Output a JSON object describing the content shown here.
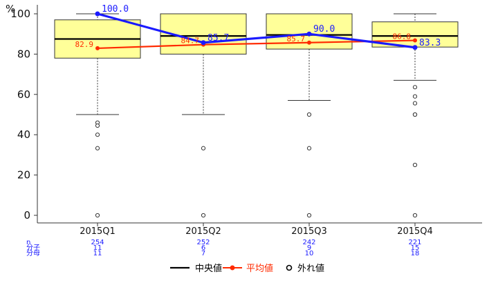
{
  "chart_data": {
    "type": "box",
    "yunit": "%",
    "ylim": [
      0,
      100
    ],
    "yticks": [
      0,
      20,
      40,
      60,
      80,
      100
    ],
    "categories": [
      "2015Q1",
      "2015Q2",
      "2015Q3",
      "2015Q4"
    ],
    "boxes": [
      {
        "category": "2015Q1",
        "whisker_low": 50,
        "q1": 78,
        "median": 87.5,
        "q3": 97,
        "whisker_high": 100,
        "outliers": [
          46,
          44.5,
          40,
          33.3,
          0
        ]
      },
      {
        "category": "2015Q2",
        "whisker_low": 50,
        "q1": 80,
        "median": 89,
        "q3": 100,
        "whisker_high": 100,
        "outliers": [
          33.3,
          0
        ]
      },
      {
        "category": "2015Q3",
        "whisker_low": 57,
        "q1": 82.5,
        "median": 89.5,
        "q3": 100,
        "whisker_high": 100,
        "outliers": [
          50,
          33.3,
          0
        ]
      },
      {
        "category": "2015Q4",
        "whisker_low": 67,
        "q1": 83.5,
        "median": 89,
        "q3": 96,
        "whisker_high": 100,
        "outliers": [
          63.6,
          59,
          55.6,
          50,
          50,
          25,
          0
        ]
      }
    ],
    "series": [
      {
        "name": "",
        "color": "#1a1aff",
        "values": [
          100.0,
          85.7,
          90.0,
          83.3
        ],
        "labels": [
          "100.0",
          "85.7",
          "90.0",
          "83.3"
        ]
      },
      {
        "name": "平均値",
        "color": "#ff2a00",
        "values": [
          82.9,
          84.7,
          85.7,
          86.8
        ],
        "labels": [
          "82.9",
          "84.7",
          "85.7",
          "86.8"
        ]
      }
    ],
    "counts": {
      "row_labels": [
        "n",
        "分子",
        "分母"
      ],
      "n": [
        "254",
        "252",
        "242",
        "221"
      ],
      "numerator": [
        "11",
        "6",
        "9",
        "15"
      ],
      "denominator": [
        "11",
        "7",
        "10",
        "18"
      ]
    },
    "legend": {
      "position": "bottom",
      "items": [
        {
          "label": "中央値",
          "color": "#000000",
          "kind": "line"
        },
        {
          "label": "平均値",
          "color": "#ff2a00",
          "kind": "line-dot"
        },
        {
          "label": "外れ値",
          "color": "#000000",
          "kind": "circle"
        }
      ]
    },
    "grid": false,
    "box_fill": "#ffff99"
  }
}
